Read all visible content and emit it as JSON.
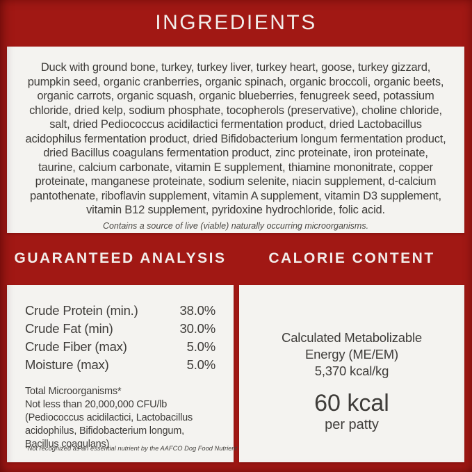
{
  "colors": {
    "background_red": "#A11814",
    "panel_offwhite": "#F4F3F0",
    "text_dark": "#3E3C39",
    "heading_light": "#F2EDEA"
  },
  "ingredients": {
    "title": "INGREDIENTS",
    "text": "Duck with ground bone, turkey, turkey liver, turkey heart, goose, turkey gizzard, pumpkin seed, organic cranberries, organic spinach, organic broccoli, organic beets, organic carrots, organic squash, organic blueberries, fenugreek seed, potassium chloride, dried kelp, sodium phosphate, tocopherols (preservative), choline chloride, salt, dried Pediococcus acidilactici fermentation product, dried Lactobacillus acidophilus fermentation product, dried Bifidobacterium longum fermentation product, dried Bacillus coagulans fermentation product, zinc proteinate, iron proteinate, taurine, calcium carbonate, vitamin E supplement, thiamine mononitrate, copper proteinate, manganese proteinate, sodium selenite, niacin supplement, d-calcium pantothenate, riboflavin supplement, vitamin A supplement, vitamin D3 supplement, vitamin B12 supplement, pyridoxine hydrochloride, folic acid.",
    "note": "Contains a source of live (viable) naturally occurring microorganisms."
  },
  "guaranteed_analysis": {
    "title": "GUARANTEED ANALYSIS",
    "rows": [
      {
        "label": "Crude Protein (min.)",
        "value": "38.0%"
      },
      {
        "label": "Crude Fat (min)",
        "value": "30.0%"
      },
      {
        "label": "Crude Fiber (max)",
        "value": "5.0%"
      },
      {
        "label": "Moisture (max)",
        "value": "5.0%"
      }
    ],
    "microorganisms_title": "Total Microorganisms*",
    "microorganisms_text": "Not less than 20,000,000 CFU/lb (Pediococcus acidilactici, Lactobacillus acidophilus, Bifidobacterium longum, Bacillus coagulans)",
    "footnote": "*Not recognized as an essential nutrient by the AAFCO Dog Food Nutrient Profiles."
  },
  "calorie_content": {
    "title": "CALORIE CONTENT",
    "energy_label": "Calculated Metabolizable Energy (ME/EM)",
    "energy_value": "5,370 kcal/kg",
    "kcal_value": "60 kcal",
    "kcal_unit": "per patty"
  }
}
